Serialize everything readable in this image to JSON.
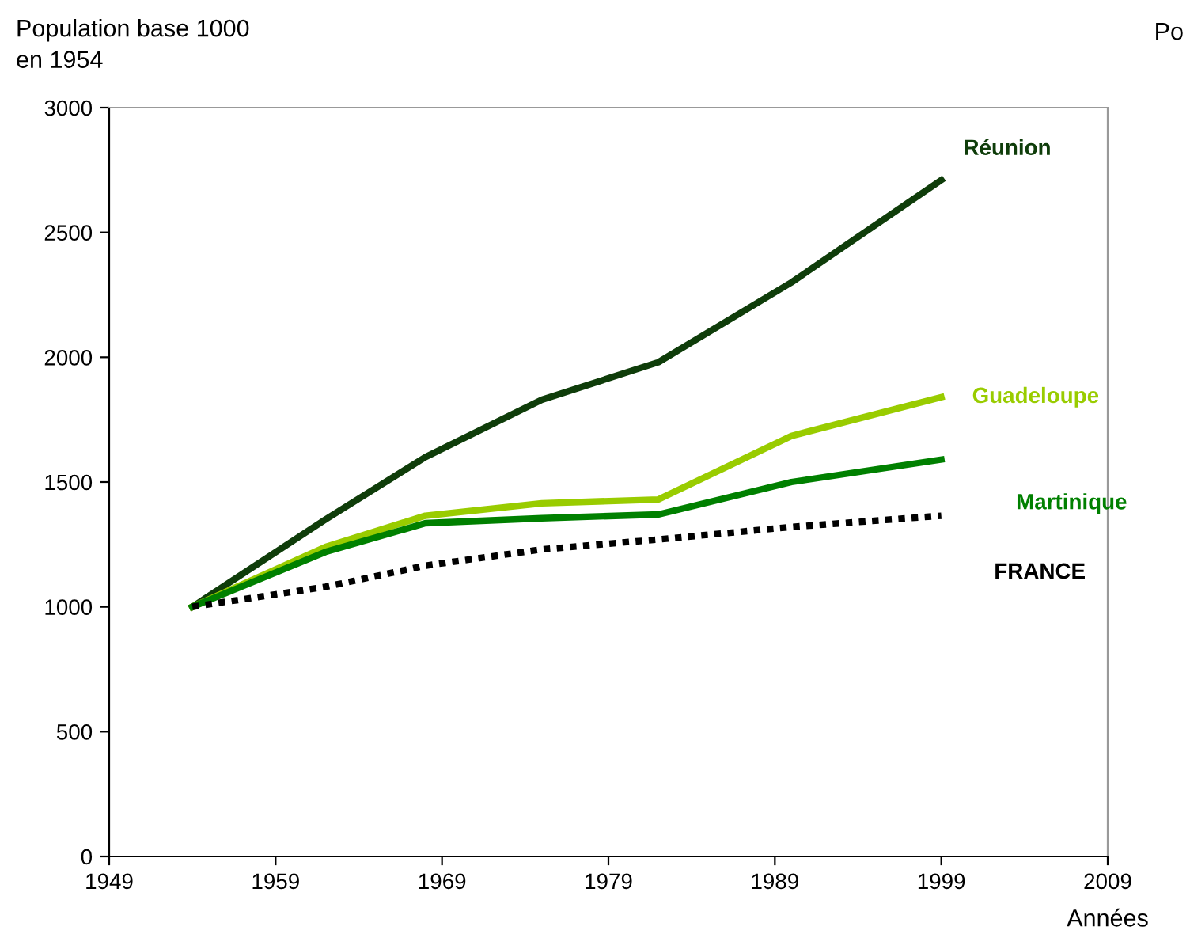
{
  "chart_data": {
    "type": "line",
    "ylabel": "Population base 1000\nen 1954",
    "xlabel": "Années",
    "x": [
      1954,
      1962,
      1968,
      1975,
      1982,
      1990,
      1999
    ],
    "series": [
      {
        "name": "Réunion",
        "color": "#0f3d0a",
        "line_style": "solid",
        "values": [
          1000,
          1350,
          1600,
          1830,
          1980,
          2300,
          2710
        ]
      },
      {
        "name": "Guadeloupe",
        "color": "#99cc00",
        "line_style": "solid",
        "values": [
          1000,
          1240,
          1365,
          1415,
          1430,
          1685,
          1840
        ]
      },
      {
        "name": "Martinique",
        "color": "#008000",
        "line_style": "solid",
        "values": [
          1000,
          1220,
          1335,
          1355,
          1370,
          1500,
          1590
        ]
      },
      {
        "name": "FRANCE",
        "color": "#000000",
        "line_style": "dotted",
        "values": [
          1000,
          1080,
          1165,
          1230,
          1270,
          1320,
          1365
        ]
      }
    ],
    "xlim": [
      1949,
      2009
    ],
    "xticks": [
      1949,
      1959,
      1969,
      1979,
      1989,
      1999,
      2009
    ],
    "ylim": [
      0,
      3000
    ],
    "yticks": [
      0,
      500,
      1000,
      1500,
      2000,
      2500,
      3000
    ],
    "grid": false,
    "legend": false,
    "marker": "none",
    "annotations": [
      "Po"
    ]
  }
}
